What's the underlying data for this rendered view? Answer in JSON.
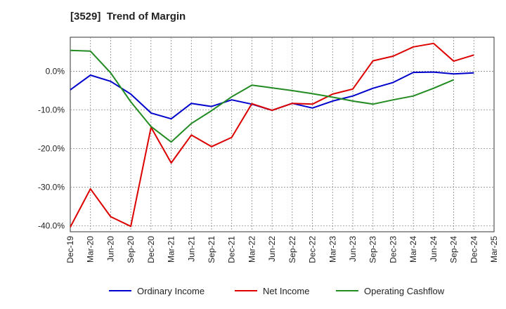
{
  "chart_data": {
    "type": "line",
    "title": "[3529]  Trend of Margin",
    "xlabel": "",
    "ylabel": "",
    "categories": [
      "Dec-19",
      "Mar-20",
      "Jun-20",
      "Sep-20",
      "Dec-20",
      "Mar-21",
      "Jun-21",
      "Sep-21",
      "Dec-21",
      "Mar-22",
      "Jun-22",
      "Sep-22",
      "Dec-22",
      "Mar-23",
      "Jun-23",
      "Sep-23",
      "Dec-23",
      "Mar-24",
      "Jun-24",
      "Sep-24",
      "Dec-24",
      "Mar-25"
    ],
    "ylim": [
      -41.5,
      8.8
    ],
    "yticks": [
      0,
      -10,
      -20,
      -30,
      -40
    ],
    "ytick_labels": [
      "0.0%",
      "-10.0%",
      "-20.0%",
      "-30.0%",
      "-40.0%"
    ],
    "grid": true,
    "legend_position": "bottom",
    "series": [
      {
        "name": "Ordinary Income",
        "color": "#0000cc",
        "values": [
          -4.8,
          -1.0,
          -2.6,
          -5.9,
          -10.8,
          -12.3,
          -8.3,
          -9.1,
          -7.4,
          -8.5,
          -10.1,
          -8.3,
          -9.5,
          -7.7,
          -6.4,
          -4.4,
          -2.9,
          -0.3,
          -0.2,
          -0.7,
          -0.4,
          null
        ]
      },
      {
        "name": "Net Income",
        "color": "#dd0000",
        "values": [
          -40.3,
          -30.4,
          -37.6,
          -40.1,
          -14.5,
          -23.7,
          -16.5,
          -19.5,
          -17.1,
          -8.4,
          -10.1,
          -8.3,
          -8.5,
          -5.9,
          -4.6,
          2.7,
          3.9,
          6.3,
          7.2,
          2.6,
          4.2,
          null
        ]
      },
      {
        "name": "Operating Cashflow",
        "color": "#228b22",
        "values": [
          5.4,
          5.2,
          -0.4,
          -7.9,
          -14.3,
          -18.3,
          -13.5,
          -10.2,
          -6.6,
          -3.6,
          -4.3,
          -5.0,
          -5.8,
          -6.7,
          -7.7,
          -8.5,
          -7.4,
          -6.4,
          -4.4,
          -2.2,
          null,
          null
        ]
      }
    ]
  }
}
